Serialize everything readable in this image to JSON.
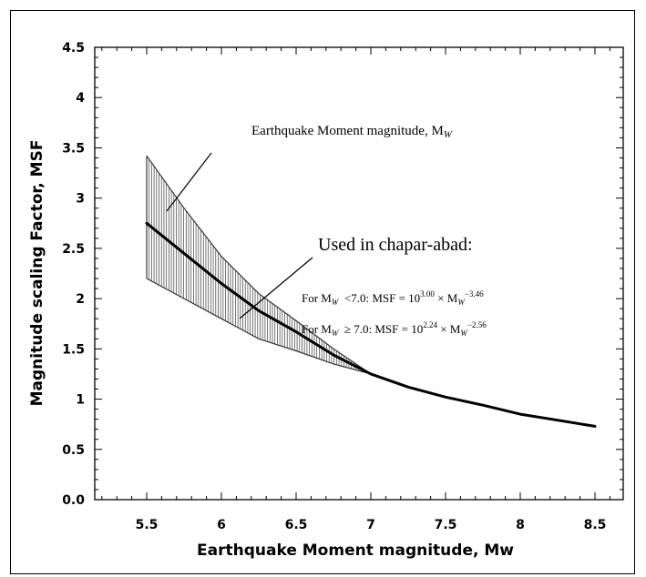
{
  "chart_data": {
    "type": "line",
    "xlabel": "Earthquake Moment magnitude, Mw",
    "ylabel": "Magnitude scaling Factor, MSF",
    "xlim": [
      5.5,
      8.5
    ],
    "ylim": [
      0.0,
      4.5
    ],
    "x_ticks": [
      "5.5",
      "6",
      "6.5",
      "7",
      "7.5",
      "8",
      "8.5"
    ],
    "y_ticks": [
      "0.0",
      "0.5",
      "1",
      "1.5",
      "2",
      "2.5",
      "3",
      "3.5",
      "4",
      "4.5"
    ],
    "series": [
      {
        "x": [
          5.5,
          5.75,
          6.0,
          6.25,
          6.5,
          6.75,
          7.0,
          7.25,
          7.5,
          7.75,
          8.0,
          8.25,
          8.5
        ],
        "values": [
          2.75,
          2.45,
          2.15,
          1.88,
          1.67,
          1.44,
          1.25,
          1.12,
          1.02,
          0.94,
          0.85,
          0.79,
          0.73
        ]
      }
    ],
    "range_band": {
      "x": [
        5.5,
        5.75,
        6.0,
        6.25,
        6.5,
        6.75,
        7.0
      ],
      "upper": [
        3.42,
        2.9,
        2.42,
        2.05,
        1.78,
        1.5,
        1.25
      ],
      "lower": [
        2.2,
        2.0,
        1.8,
        1.6,
        1.48,
        1.35,
        1.25
      ]
    },
    "annotations": {
      "band_label": {
        "text": "Earthquake Moment magnitude, M",
        "sub": "W"
      },
      "used_label": "Used in chapar-abad:",
      "formula1": {
        "a": "For M",
        "a_sub": "W",
        "b": "  <7.0: MSF = 10",
        "exp1": "3.00",
        "c": " × M",
        "c_sub": "W",
        "exp2": "−3.46"
      },
      "formula2": {
        "a": "For M",
        "a_sub": "W",
        "b": "  ≥ 7.0: MSF = 10",
        "exp1": "2.24",
        "c": " × M",
        "c_sub": "W",
        "exp2": "−2.56"
      }
    }
  }
}
